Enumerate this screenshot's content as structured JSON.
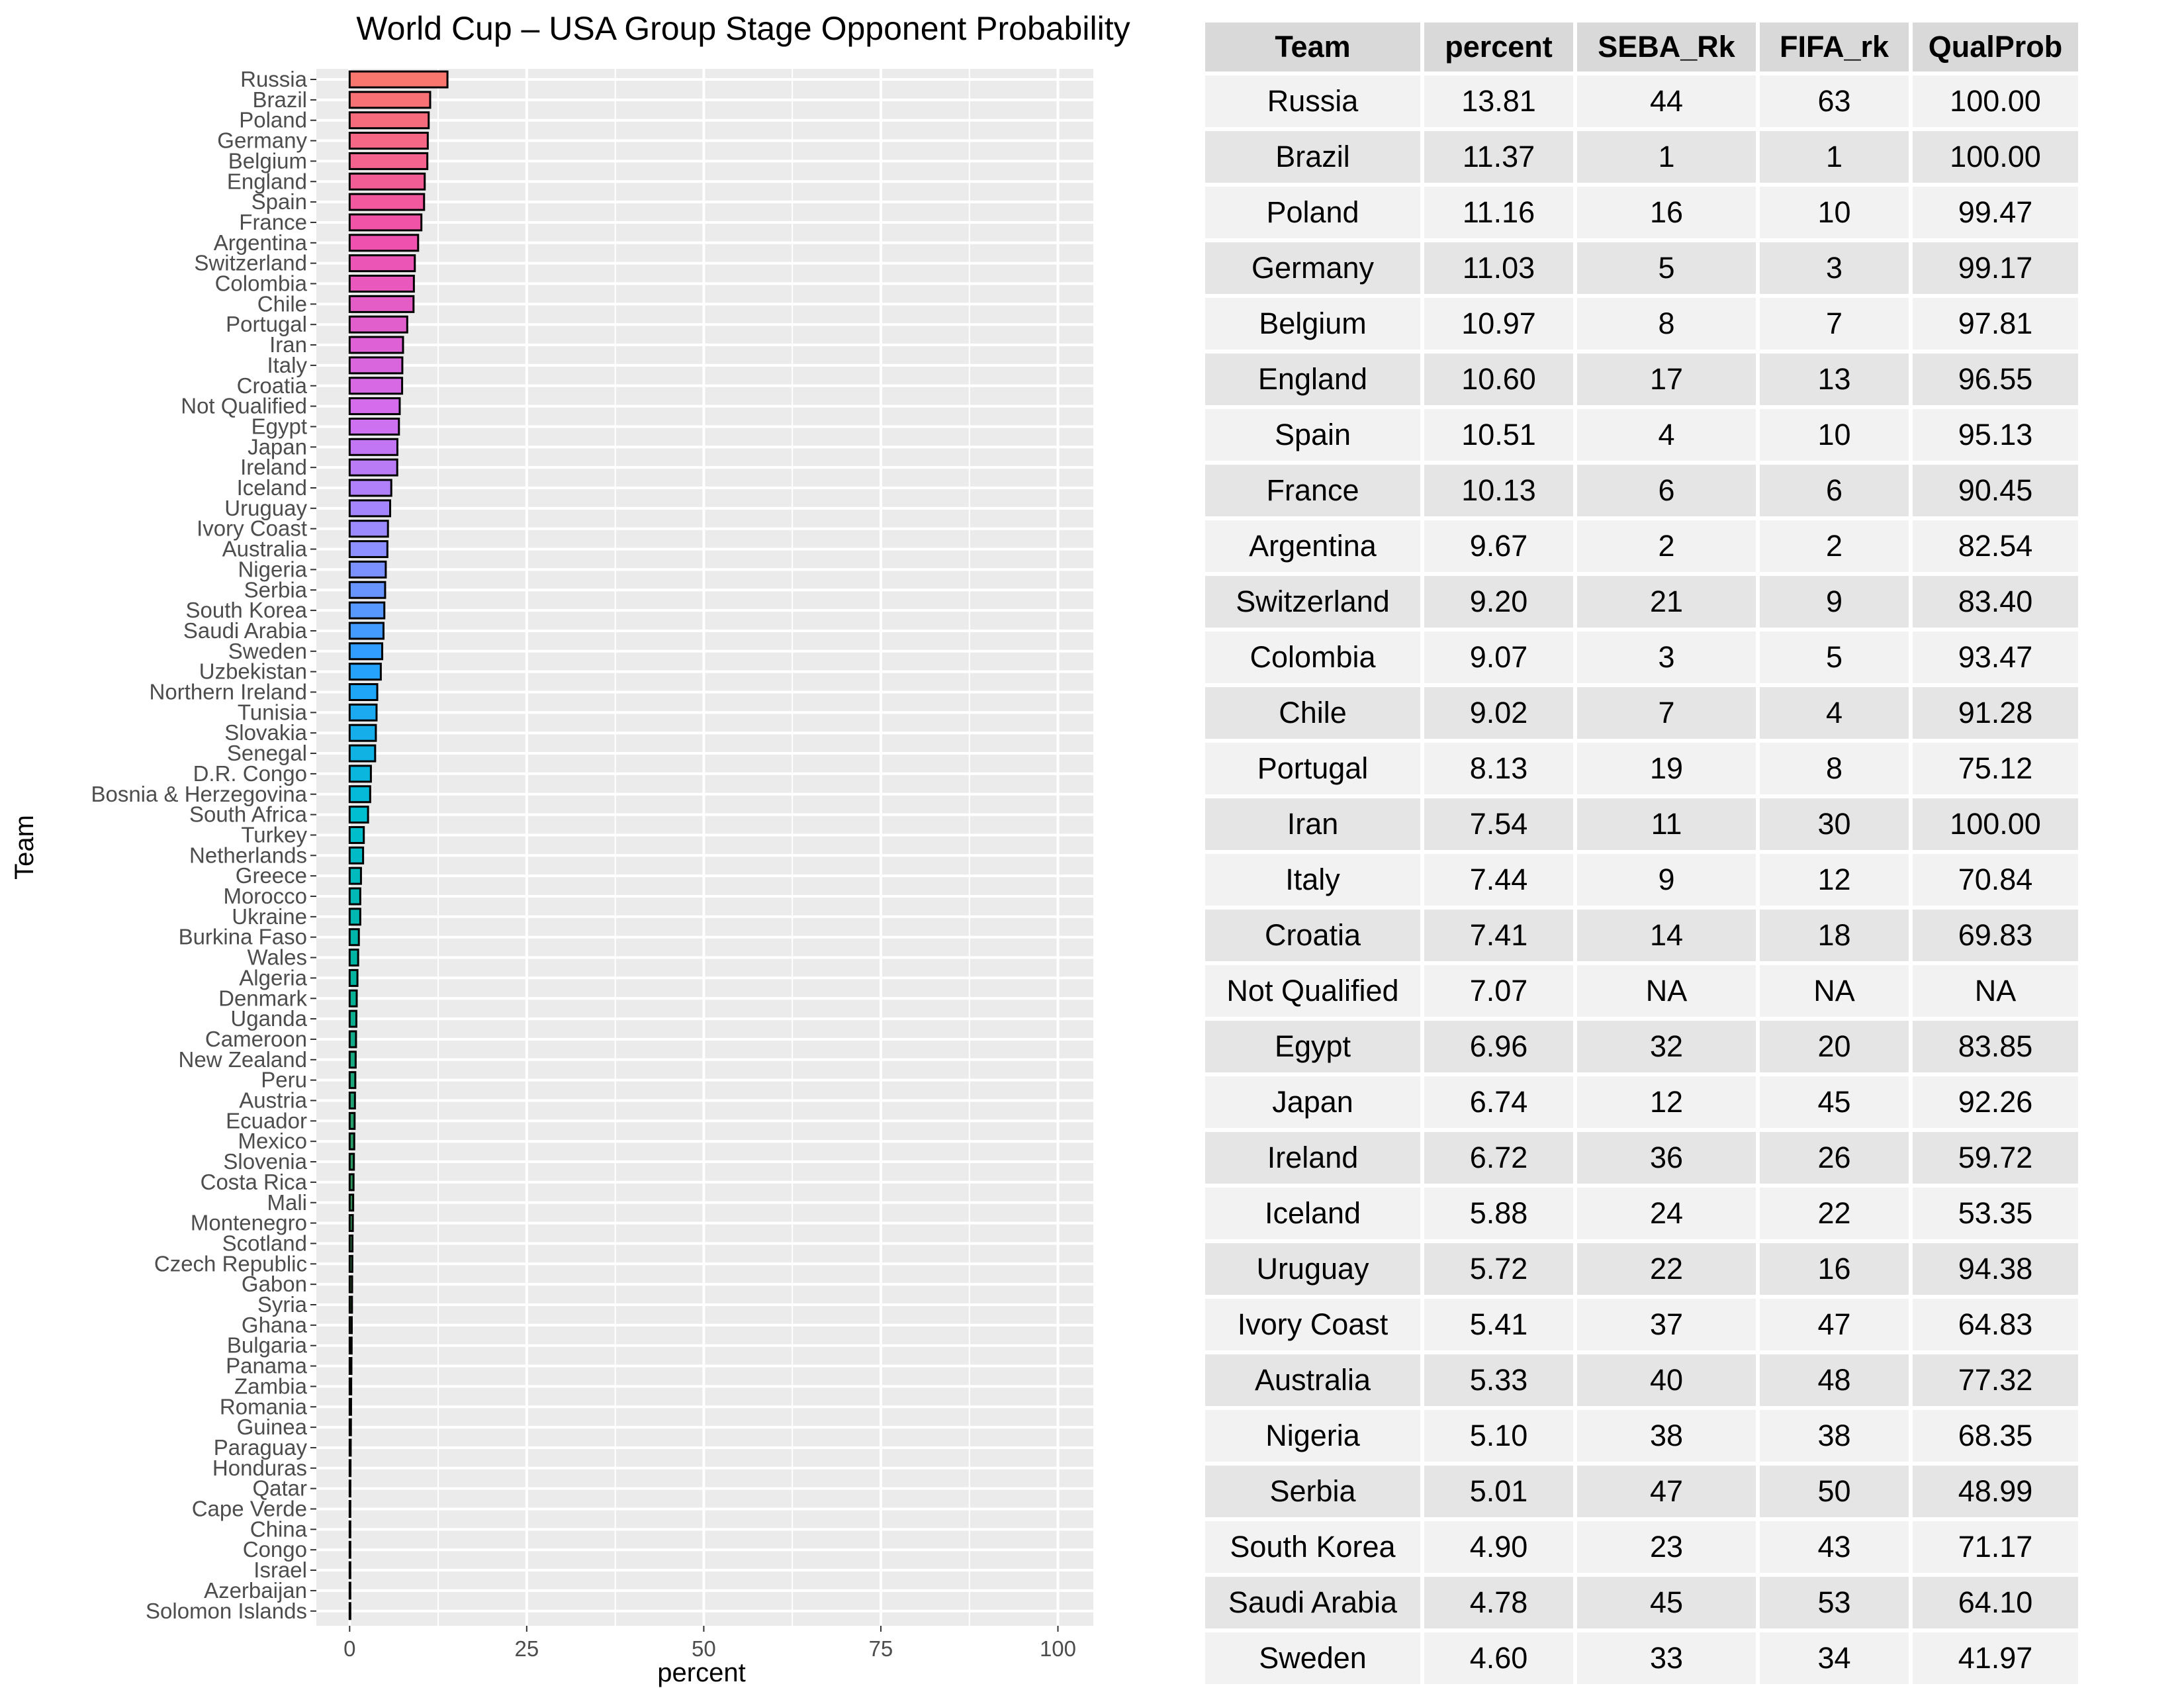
{
  "chart_data": {
    "type": "bar",
    "orientation": "horizontal",
    "title": "World Cup – USA Group Stage Opponent Probability",
    "xlabel": "percent",
    "ylabel": "Team",
    "xlim": [
      0,
      100
    ],
    "xticks": [
      "0",
      "25",
      "50",
      "75",
      "100"
    ],
    "grid": true,
    "legend": "none",
    "categories": [
      "Russia",
      "Brazil",
      "Poland",
      "Germany",
      "Belgium",
      "England",
      "Spain",
      "France",
      "Argentina",
      "Switzerland",
      "Colombia",
      "Chile",
      "Portugal",
      "Iran",
      "Italy",
      "Croatia",
      "Not Qualified",
      "Egypt",
      "Japan",
      "Ireland",
      "Iceland",
      "Uruguay",
      "Ivory Coast",
      "Australia",
      "Nigeria",
      "Serbia",
      "South Korea",
      "Saudi Arabia",
      "Sweden",
      "Uzbekistan",
      "Northern Ireland",
      "Tunisia",
      "Slovakia",
      "Senegal",
      "D.R. Congo",
      "Bosnia & Herzegovina",
      "South Africa",
      "Turkey",
      "Netherlands",
      "Greece",
      "Morocco",
      "Ukraine",
      "Burkina Faso",
      "Wales",
      "Algeria",
      "Denmark",
      "Uganda",
      "Cameroon",
      "New Zealand",
      "Peru",
      "Austria",
      "Ecuador",
      "Mexico",
      "Slovenia",
      "Costa Rica",
      "Mali",
      "Montenegro",
      "Scotland",
      "Czech Republic",
      "Gabon",
      "Syria",
      "Ghana",
      "Bulgaria",
      "Panama",
      "Zambia",
      "Romania",
      "Guinea",
      "Paraguay",
      "Honduras",
      "Qatar",
      "Cape Verde",
      "China",
      "Congo",
      "Israel",
      "Azerbaijan",
      "Solomon Islands"
    ],
    "values": [
      13.81,
      11.37,
      11.16,
      11.03,
      10.97,
      10.6,
      10.51,
      10.13,
      9.67,
      9.2,
      9.07,
      9.02,
      8.13,
      7.54,
      7.44,
      7.41,
      7.07,
      6.96,
      6.74,
      6.72,
      5.88,
      5.72,
      5.41,
      5.33,
      5.1,
      5.01,
      4.9,
      4.78,
      4.6,
      4.4,
      3.9,
      3.8,
      3.7,
      3.6,
      3.0,
      2.9,
      2.6,
      2.0,
      1.9,
      1.6,
      1.5,
      1.5,
      1.3,
      1.2,
      1.1,
      1.0,
      0.95,
      0.9,
      0.85,
      0.8,
      0.75,
      0.7,
      0.65,
      0.6,
      0.55,
      0.5,
      0.45,
      0.4,
      0.38,
      0.35,
      0.33,
      0.3,
      0.28,
      0.25,
      0.22,
      0.2,
      0.18,
      0.15,
      0.12,
      0.1,
      0.08,
      0.06,
      0.05,
      0.04,
      0.03,
      0.02
    ]
  },
  "table": {
    "headers": [
      "Team",
      "percent",
      "SEBA_Rk",
      "FIFA_rk",
      "QualProb"
    ],
    "rows": [
      [
        "Russia",
        "13.81",
        "44",
        "63",
        "100.00"
      ],
      [
        "Brazil",
        "11.37",
        "1",
        "1",
        "100.00"
      ],
      [
        "Poland",
        "11.16",
        "16",
        "10",
        "99.47"
      ],
      [
        "Germany",
        "11.03",
        "5",
        "3",
        "99.17"
      ],
      [
        "Belgium",
        "10.97",
        "8",
        "7",
        "97.81"
      ],
      [
        "England",
        "10.60",
        "17",
        "13",
        "96.55"
      ],
      [
        "Spain",
        "10.51",
        "4",
        "10",
        "95.13"
      ],
      [
        "France",
        "10.13",
        "6",
        "6",
        "90.45"
      ],
      [
        "Argentina",
        "9.67",
        "2",
        "2",
        "82.54"
      ],
      [
        "Switzerland",
        "9.20",
        "21",
        "9",
        "83.40"
      ],
      [
        "Colombia",
        "9.07",
        "3",
        "5",
        "93.47"
      ],
      [
        "Chile",
        "9.02",
        "7",
        "4",
        "91.28"
      ],
      [
        "Portugal",
        "8.13",
        "19",
        "8",
        "75.12"
      ],
      [
        "Iran",
        "7.54",
        "11",
        "30",
        "100.00"
      ],
      [
        "Italy",
        "7.44",
        "9",
        "12",
        "70.84"
      ],
      [
        "Croatia",
        "7.41",
        "14",
        "18",
        "69.83"
      ],
      [
        "Not Qualified",
        "7.07",
        "NA",
        "NA",
        "NA"
      ],
      [
        "Egypt",
        "6.96",
        "32",
        "20",
        "83.85"
      ],
      [
        "Japan",
        "6.74",
        "12",
        "45",
        "92.26"
      ],
      [
        "Ireland",
        "6.72",
        "36",
        "26",
        "59.72"
      ],
      [
        "Iceland",
        "5.88",
        "24",
        "22",
        "53.35"
      ],
      [
        "Uruguay",
        "5.72",
        "22",
        "16",
        "94.38"
      ],
      [
        "Ivory Coast",
        "5.41",
        "37",
        "47",
        "64.83"
      ],
      [
        "Australia",
        "5.33",
        "40",
        "48",
        "77.32"
      ],
      [
        "Nigeria",
        "5.10",
        "38",
        "38",
        "68.35"
      ],
      [
        "Serbia",
        "5.01",
        "47",
        "50",
        "48.99"
      ],
      [
        "South Korea",
        "4.90",
        "23",
        "43",
        "71.17"
      ],
      [
        "Saudi Arabia",
        "4.78",
        "45",
        "53",
        "64.10"
      ],
      [
        "Sweden",
        "4.60",
        "33",
        "34",
        "41.97"
      ]
    ]
  },
  "colors": {
    "panel_background": "#ebebeb",
    "gridline": "#ffffff",
    "bar_outline": "#000000",
    "palette_start": "#F8766D",
    "palette_end": "#000000"
  }
}
